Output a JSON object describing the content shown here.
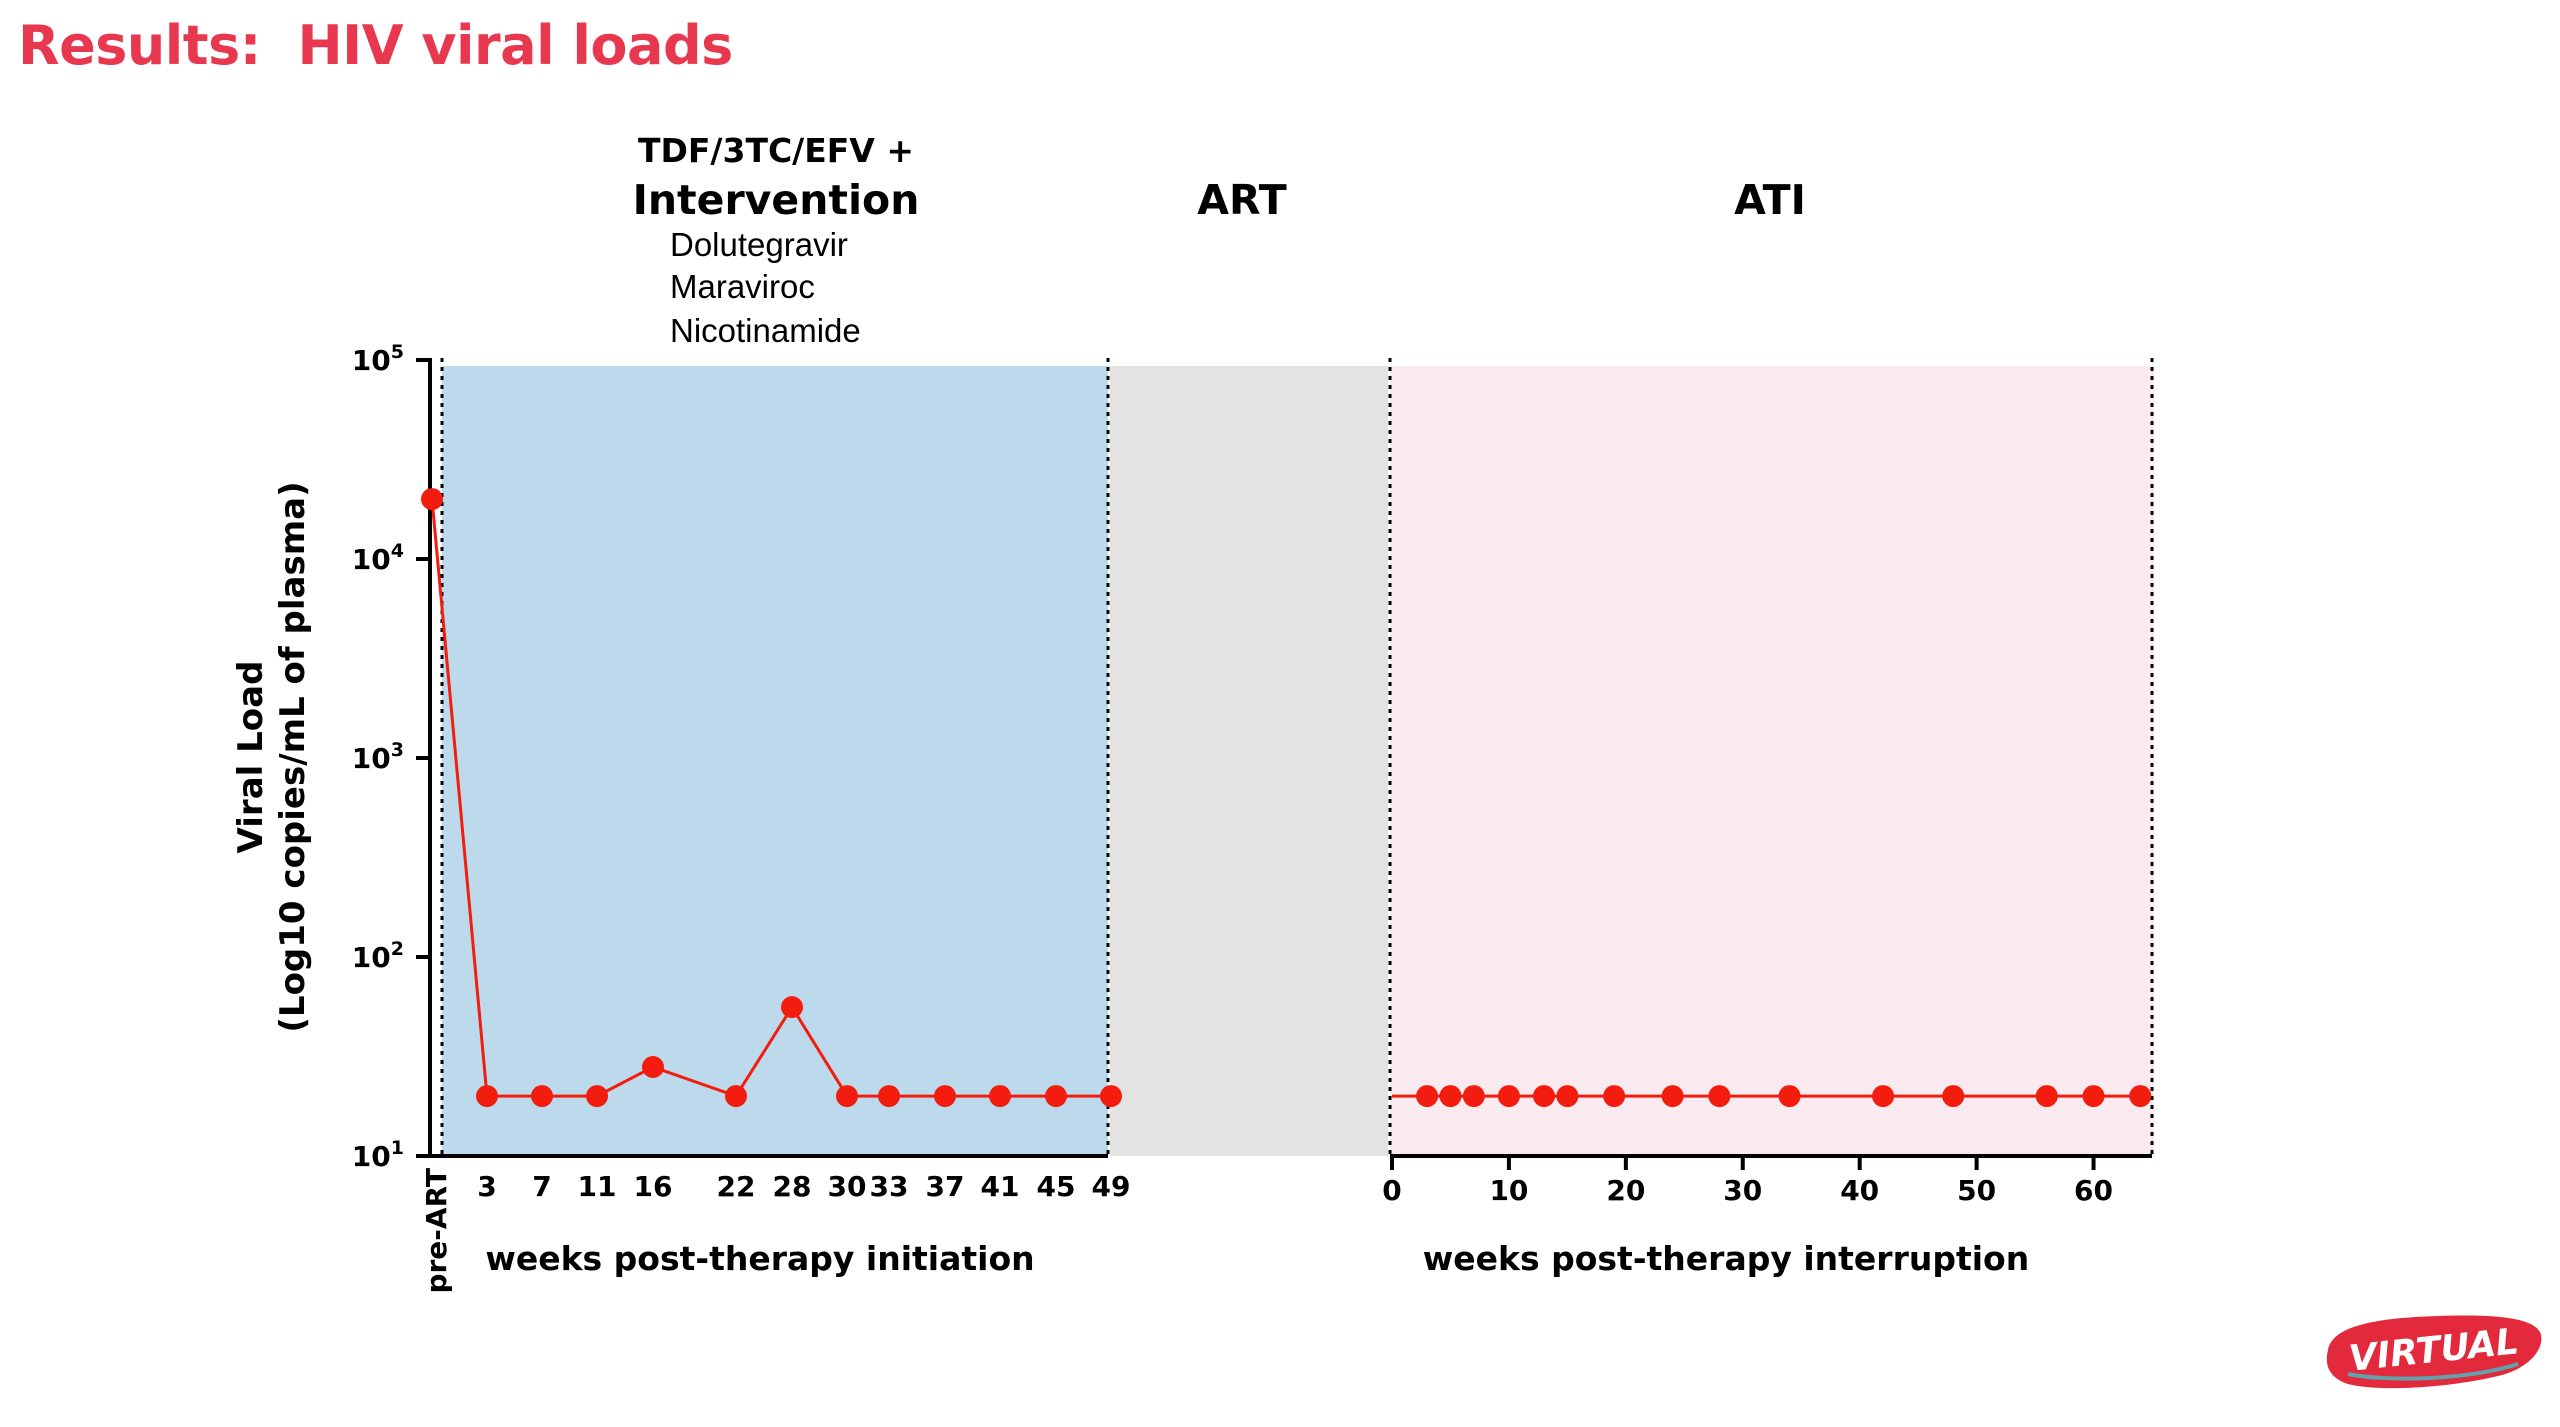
{
  "slide": {
    "title": "Results:  HIV viral loads"
  },
  "header_labels": {
    "regimen": "TDF/3TC/EFV +",
    "intervention": "Intervention",
    "drugs": [
      "Dolutegravir",
      "Maraviroc",
      "Nicotinamide"
    ],
    "art": "ART",
    "ati": "ATI"
  },
  "colors": {
    "title": "#e8384f",
    "series": "#f21d0e",
    "intervention_band": "#bcdaec",
    "art_band": "#e3e3e3",
    "ati_band": "#f9eaf0",
    "axis": "#000000"
  },
  "logo": {
    "text": "VIRTUAL",
    "color": "#e32a3c"
  },
  "chart_data": [
    {
      "type": "line",
      "panel": "post-therapy initiation",
      "xlabel": "weeks post-therapy initiation",
      "ylabel": "Viral Load",
      "ylabel_units": "(Log10 copies/mL of plasma)",
      "y_scale": "log",
      "ylim": [
        10,
        100000
      ],
      "y_ticks": [
        10,
        100,
        1000,
        10000,
        100000
      ],
      "y_tick_labels": [
        {
          "base": "10",
          "exp": "1"
        },
        {
          "base": "10",
          "exp": "2"
        },
        {
          "base": "10",
          "exp": "3"
        },
        {
          "base": "10",
          "exp": "4"
        },
        {
          "base": "10",
          "exp": "5"
        }
      ],
      "x_tick_labels": [
        "pre-ART",
        "3",
        "7",
        "11",
        "16",
        "22",
        "28",
        "30",
        "33",
        "37",
        "41",
        "45",
        "49"
      ],
      "x": [
        "pre-ART",
        3,
        7,
        11,
        16,
        22,
        28,
        30,
        33,
        37,
        41,
        45,
        49
      ],
      "values": [
        20000,
        20,
        20,
        20,
        28,
        20,
        56,
        20,
        20,
        20,
        20,
        20,
        20
      ],
      "shaded_region": "intervention weeks 1-49"
    },
    {
      "type": "line",
      "panel": "post-therapy interruption",
      "xlabel": "weeks post-therapy interruption",
      "y_scale": "log",
      "ylim": [
        10,
        100000
      ],
      "xlim": [
        0,
        65
      ],
      "x_ticks": [
        0,
        10,
        20,
        30,
        40,
        50,
        60
      ],
      "x_tick_labels": [
        "0",
        "10",
        "20",
        "30",
        "40",
        "50",
        "60"
      ],
      "x": [
        0,
        3,
        5,
        7,
        10,
        13,
        15,
        19,
        24,
        28,
        34,
        42,
        48,
        56,
        60,
        64
      ],
      "values": [
        20,
        20,
        20,
        20,
        20,
        20,
        20,
        20,
        20,
        20,
        20,
        20,
        20,
        20,
        20,
        20
      ],
      "shaded_region": "ATI weeks 0-65"
    }
  ]
}
